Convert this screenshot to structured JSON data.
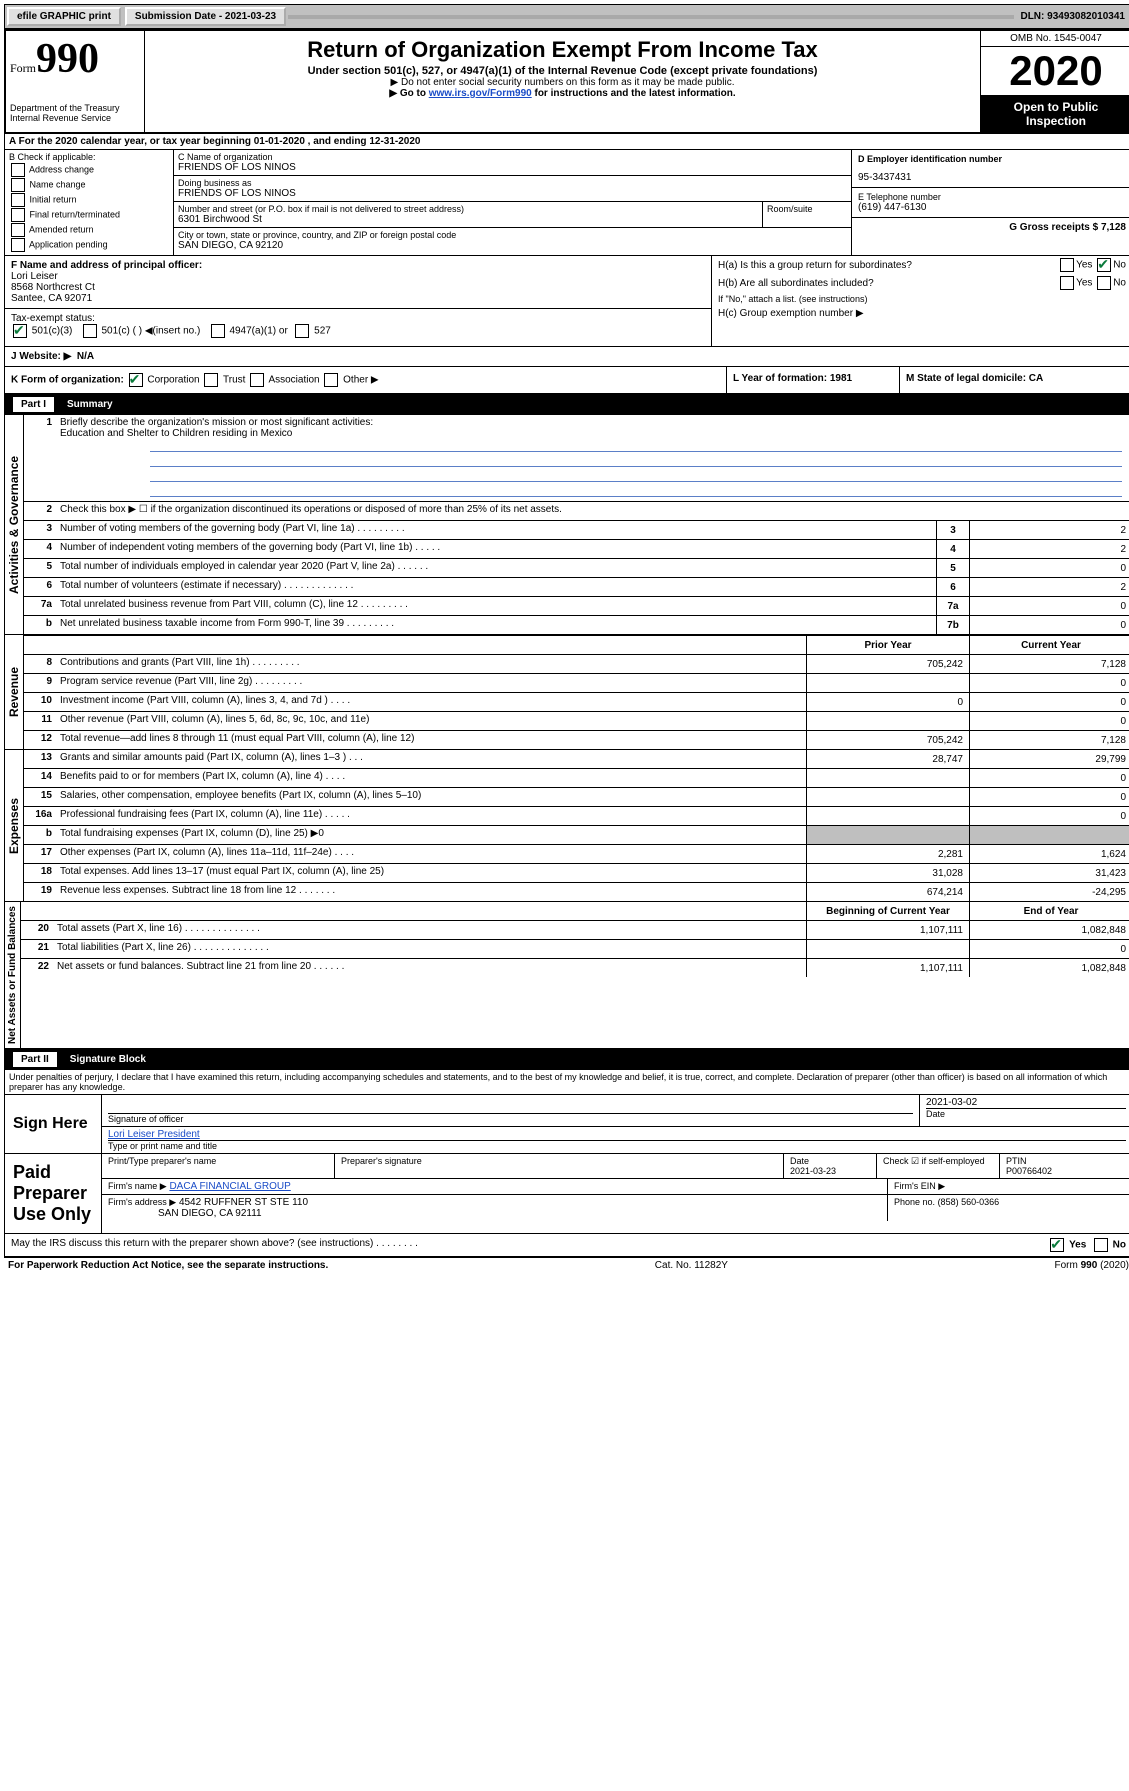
{
  "top_bar": {
    "efile": "efile GRAPHIC print",
    "submission": "Submission Date - 2021-03-23",
    "dln": "DLN: 93493082010341"
  },
  "header": {
    "form_prefix": "Form",
    "form_number": "990",
    "dept": "Department of the Treasury",
    "irs": "Internal Revenue Service",
    "title": "Return of Organization Exempt From Income Tax",
    "subtitle": "Under section 501(c), 527, or 4947(a)(1) of the Internal Revenue Code (except private foundations)",
    "note1": "▶ Do not enter social security numbers on this form as it may be made public.",
    "note2_pre": "▶ Go to ",
    "note2_link": "www.irs.gov/Form990",
    "note2_post": " for instructions and the latest information.",
    "omb": "OMB No. 1545-0047",
    "year": "2020",
    "open": "Open to Public Inspection"
  },
  "row_a": "A  For the 2020 calendar year, or tax year beginning 01-01-2020    , and ending 12-31-2020",
  "col_b": {
    "label": "B Check if applicable:",
    "items": [
      "Address change",
      "Name change",
      "Initial return",
      "Final return/terminated",
      "Amended return",
      "Application pending"
    ]
  },
  "col_c": {
    "name_label": "C Name of organization",
    "name": "FRIENDS OF LOS NINOS",
    "dba_label": "Doing business as",
    "dba": "FRIENDS OF LOS NINOS",
    "addr_label": "Number and street (or P.O. box if mail is not delivered to street address)",
    "addr": "6301 Birchwood St",
    "room_label": "Room/suite",
    "city_label": "City or town, state or province, country, and ZIP or foreign postal code",
    "city": "SAN DIEGO, CA  92120"
  },
  "col_d": {
    "ein_label": "D Employer identification number",
    "ein": "95-3437431",
    "phone_label": "E Telephone number",
    "phone": "(619) 447-6130",
    "gross_label": "G Gross receipts $",
    "gross": "7,128"
  },
  "f": {
    "label": "F  Name and address of principal officer:",
    "name": "Lori Leiser",
    "addr1": "8568 Northcrest Ct",
    "addr2": "Santee, CA  92071"
  },
  "tax_exempt": {
    "label": "Tax-exempt status:",
    "opt1": "501(c)(3)",
    "opt2": "501(c) (   ) ◀(insert no.)",
    "opt3": "4947(a)(1) or",
    "opt4": "527"
  },
  "h": {
    "a_label": "H(a)  Is this a group return for subordinates?",
    "yes": "Yes",
    "no": "No",
    "b_label": "H(b)  Are all subordinates included?",
    "b_note": "If \"No,\" attach a list. (see instructions)",
    "c_label": "H(c)  Group exemption number ▶"
  },
  "j": {
    "label": "J  Website: ▶",
    "value": "N/A"
  },
  "k": {
    "label": "K Form of organization:",
    "corp": "Corporation",
    "trust": "Trust",
    "assoc": "Association",
    "other": "Other ▶",
    "l": "L Year of formation: 1981",
    "m": "M State of legal domicile: CA"
  },
  "part1": {
    "title": "Part I",
    "name": "Summary",
    "line1": "Briefly describe the organization's mission or most significant activities:",
    "mission": "Education and Shelter to Children residing in Mexico",
    "line2": "Check this box ▶ ☐  if the organization discontinued its operations or disposed of more than 25% of its net assets."
  },
  "governance_rows": [
    {
      "n": "3",
      "d": "Number of voting members of the governing body (Part VI, line 1a)   .    .    .    .    .    .    .    .    .",
      "b": "3",
      "v": "2"
    },
    {
      "n": "4",
      "d": "Number of independent voting members of the governing body (Part VI, line 1b)   .    .    .    .    .",
      "b": "4",
      "v": "2"
    },
    {
      "n": "5",
      "d": "Total number of individuals employed in calendar year 2020 (Part V, line 2a)   .    .    .    .    .    .",
      "b": "5",
      "v": "0"
    },
    {
      "n": "6",
      "d": "Total number of volunteers (estimate if necessary)   .    .    .    .    .    .    .    .    .    .    .    .    .",
      "b": "6",
      "v": "2"
    },
    {
      "n": "7a",
      "d": "Total unrelated business revenue from Part VIII, column (C), line 12   .    .    .    .    .    .    .    .    .",
      "b": "7a",
      "v": "0"
    },
    {
      "n": "b",
      "d": "Net unrelated business taxable income from Form 990-T, line 39   .    .    .    .    .    .    .    .    .",
      "b": "7b",
      "v": "0"
    }
  ],
  "two_col_header": {
    "prior": "Prior Year",
    "current": "Current Year"
  },
  "revenue_rows": [
    {
      "n": "8",
      "d": "Contributions and grants (Part VIII, line 1h)   .    .    .    .    .    .    .    .    .",
      "p": "705,242",
      "c": "7,128"
    },
    {
      "n": "9",
      "d": "Program service revenue (Part VIII, line 2g)   .    .    .    .    .    .    .    .    .",
      "p": "",
      "c": "0"
    },
    {
      "n": "10",
      "d": "Investment income (Part VIII, column (A), lines 3, 4, and 7d )   .    .    .    .",
      "p": "0",
      "c": "0"
    },
    {
      "n": "11",
      "d": "Other revenue (Part VIII, column (A), lines 5, 6d, 8c, 9c, 10c, and 11e)",
      "p": "",
      "c": "0"
    },
    {
      "n": "12",
      "d": "Total revenue—add lines 8 through 11 (must equal Part VIII, column (A), line 12)",
      "p": "705,242",
      "c": "7,128"
    }
  ],
  "expense_rows": [
    {
      "n": "13",
      "d": "Grants and similar amounts paid (Part IX, column (A), lines 1–3 )   .    .    .",
      "p": "28,747",
      "c": "29,799"
    },
    {
      "n": "14",
      "d": "Benefits paid to or for members (Part IX, column (A), line 4)   .    .    .    .",
      "p": "",
      "c": "0"
    },
    {
      "n": "15",
      "d": "Salaries, other compensation, employee benefits (Part IX, column (A), lines 5–10)",
      "p": "",
      "c": "0"
    },
    {
      "n": "16a",
      "d": "Professional fundraising fees (Part IX, column (A), line 11e)   .    .    .    .    .",
      "p": "",
      "c": "0"
    },
    {
      "n": "b",
      "d": "Total fundraising expenses (Part IX, column (D), line 25) ▶0",
      "p": "shaded",
      "c": "shaded"
    },
    {
      "n": "17",
      "d": "Other expenses (Part IX, column (A), lines 11a–11d, 11f–24e)   .    .    .    .",
      "p": "2,281",
      "c": "1,624"
    },
    {
      "n": "18",
      "d": "Total expenses. Add lines 13–17 (must equal Part IX, column (A), line 25)",
      "p": "31,028",
      "c": "31,423"
    },
    {
      "n": "19",
      "d": "Revenue less expenses. Subtract line 18 from line 12   .    .    .    .    .    .    .",
      "p": "674,214",
      "c": "-24,295"
    }
  ],
  "net_header": {
    "begin": "Beginning of Current Year",
    "end": "End of Year"
  },
  "net_rows": [
    {
      "n": "20",
      "d": "Total assets (Part X, line 16)   .    .    .    .    .    .    .    .    .    .    .    .    .    .",
      "p": "1,107,111",
      "c": "1,082,848"
    },
    {
      "n": "21",
      "d": "Total liabilities (Part X, line 26)   .    .    .    .    .    .    .    .    .    .    .    .    .    .",
      "p": "",
      "c": "0"
    },
    {
      "n": "22",
      "d": "Net assets or fund balances. Subtract line 21 from line 20   .    .    .    .    .    .",
      "p": "1,107,111",
      "c": "1,082,848"
    }
  ],
  "part2": {
    "title": "Part II",
    "name": "Signature Block"
  },
  "perjury": "Under penalties of perjury, I declare that I have examined this return, including accompanying schedules and statements, and to the best of my knowledge and belief, it is true, correct, and complete. Declaration of preparer (other than officer) is based on all information of which preparer has any knowledge.",
  "sign": {
    "here": "Sign Here",
    "sig_officer": "Signature of officer",
    "date": "2021-03-02",
    "date_label": "Date",
    "name_title": "Lori Leiser  President",
    "type_label": "Type or print name and title"
  },
  "paid": {
    "label": "Paid Preparer Use Only",
    "print_label": "Print/Type preparer's name",
    "sig_label": "Preparer's signature",
    "date_label": "Date",
    "date": "2021-03-23",
    "check_label": "Check ☑ if self-employed",
    "ptin_label": "PTIN",
    "ptin": "P00766402",
    "firm_name_label": "Firm's name    ▶",
    "firm_name": "DACA FINANCIAL GROUP",
    "firm_ein_label": "Firm's EIN ▶",
    "firm_addr_label": "Firm's address ▶",
    "firm_addr1": "4542 RUFFNER ST STE 110",
    "firm_addr2": "SAN DIEGO, CA  92111",
    "phone_label": "Phone no.",
    "phone": "(858) 560-0366"
  },
  "discuss": "May the IRS discuss this return with the preparer shown above? (see instructions)   .    .    .    .    .    .    .    .",
  "footer": {
    "left": "For Paperwork Reduction Act Notice, see the separate instructions.",
    "mid": "Cat. No. 11282Y",
    "right": "Form 990 (2020)"
  },
  "vlabels": {
    "gov": "Activities & Governance",
    "rev": "Revenue",
    "exp": "Expenses",
    "net": "Net Assets or Fund Balances"
  },
  "colors": {
    "link": "#1a4cc7",
    "rule": "#5b7fc7",
    "check": "#0a7a3b"
  }
}
